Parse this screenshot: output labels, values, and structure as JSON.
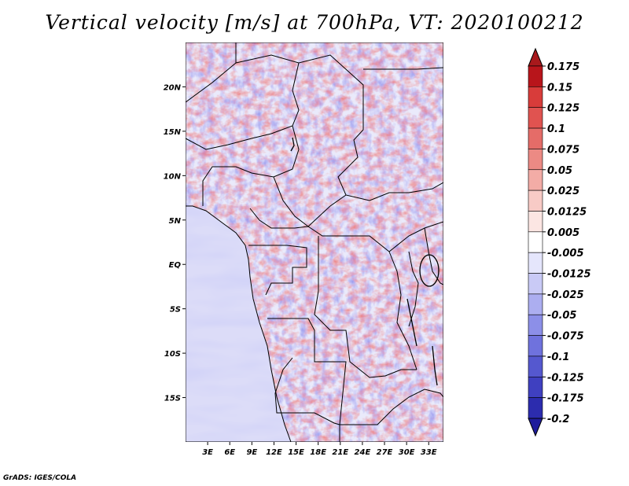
{
  "title": "Vertical velocity [m/s] at 700hPa, VT: 2020100212",
  "credit": "GrADS: IGES/COLA",
  "map": {
    "variable": "Vertical velocity",
    "units": "m/s",
    "level": "700hPa",
    "valid_time": "2020100212",
    "lon_range": [
      0,
      35
    ],
    "lat_range": [
      -20,
      25
    ],
    "x_ticks": [
      {
        "value": 3,
        "label": "3E"
      },
      {
        "value": 6,
        "label": "6E"
      },
      {
        "value": 9,
        "label": "9E"
      },
      {
        "value": 12,
        "label": "12E"
      },
      {
        "value": 15,
        "label": "15E"
      },
      {
        "value": 18,
        "label": "18E"
      },
      {
        "value": 21,
        "label": "21E"
      },
      {
        "value": 24,
        "label": "24E"
      },
      {
        "value": 27,
        "label": "27E"
      },
      {
        "value": 30,
        "label": "30E"
      },
      {
        "value": 33,
        "label": "33E"
      }
    ],
    "y_ticks": [
      {
        "value": 20,
        "label": "20N"
      },
      {
        "value": 15,
        "label": "15N"
      },
      {
        "value": 10,
        "label": "10N"
      },
      {
        "value": 5,
        "label": "5N"
      },
      {
        "value": 0,
        "label": "EQ"
      },
      {
        "value": -5,
        "label": "5S"
      },
      {
        "value": -10,
        "label": "10S"
      },
      {
        "value": -15,
        "label": "15S"
      }
    ]
  },
  "colorbar": {
    "levels": [
      {
        "label": "0.175",
        "color": "#b8151b"
      },
      {
        "label": "0.15",
        "color": "#cc2a2a"
      },
      {
        "label": "0.125",
        "color": "#d83c3a"
      },
      {
        "label": "0.1",
        "color": "#e05350"
      },
      {
        "label": "0.075",
        "color": "#e56c68"
      },
      {
        "label": "0.05",
        "color": "#ec8a84"
      },
      {
        "label": "0.025",
        "color": "#f3aca6"
      },
      {
        "label": "0.0125",
        "color": "#f8cbc6"
      },
      {
        "label": "0.005",
        "color": "#fce6e3"
      },
      {
        "label": "-0.005",
        "color": "#ffffff"
      },
      {
        "label": "-0.0125",
        "color": "#e5e6fc"
      },
      {
        "label": "-0.025",
        "color": "#c9caf6"
      },
      {
        "label": "-0.05",
        "color": "#acaef0"
      },
      {
        "label": "-0.075",
        "color": "#8c8fe8"
      },
      {
        "label": "-0.1",
        "color": "#6f72dd"
      },
      {
        "label": "-0.125",
        "color": "#5558cf"
      },
      {
        "label": "-0.175",
        "color": "#3f40c0"
      },
      {
        "label": "-0.2",
        "color": "#2c2cae"
      }
    ],
    "top_cap_color": "#a8191c",
    "bottom_cap_color": "#1f1c9c"
  }
}
